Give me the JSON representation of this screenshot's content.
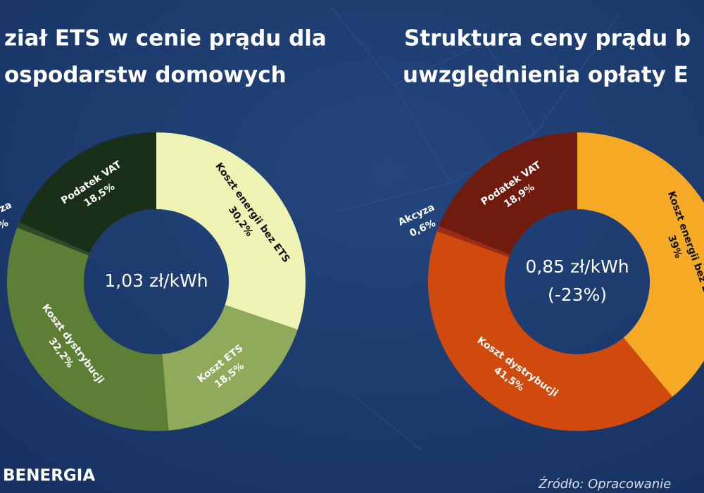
{
  "chart_data": [
    {
      "type": "donut",
      "title": [
        "ział ETS w cenie prądu dla",
        "ospodarstw domowych"
      ],
      "center_text": [
        "1,03 zł/kWh"
      ],
      "categories": [
        "Koszt energii bez ETS",
        "Koszt ETS",
        "Koszt dystrybucji",
        "kcyza",
        "Podatek VAT"
      ],
      "values": [
        30.2,
        18.5,
        32.2,
        0.6,
        18.5
      ],
      "value_labels": [
        "30,2%",
        "18,5%",
        "32,2%",
        "%",
        "18,5%"
      ],
      "colors": [
        "#eef3b4",
        "#8faa5a",
        "#5c7f35",
        "#2d4c26",
        "#1a2f17"
      ]
    },
    {
      "type": "donut",
      "title": [
        "Struktura ceny prądu b",
        "uwzględnienia opłaty E"
      ],
      "center_text": [
        "0,85 zł/kWh",
        "(-23%)"
      ],
      "categories": [
        "Koszt energii bez E",
        "Koszt dystrybucji",
        "Akcyza",
        "Podatek VAT"
      ],
      "values": [
        39,
        41.5,
        0.6,
        18.9
      ],
      "value_labels": [
        "39%",
        "41,5%",
        "0,6%",
        "18,9%"
      ],
      "colors": [
        "#f6a925",
        "#cf4a0c",
        "#9b2b12",
        "#6f1b0d"
      ]
    }
  ],
  "footer": {
    "logo": "BENERGIA",
    "source": "Źródło: Opracowanie"
  }
}
